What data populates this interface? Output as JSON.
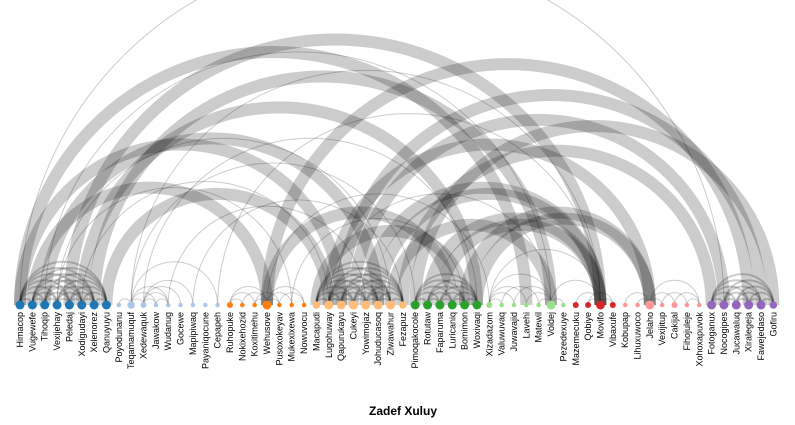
{
  "title": "Zadef Xuluy",
  "colors": {
    "dark_blue": "#1f77b4",
    "light_blue": "#aec7e8",
    "orange": "#ff7f0e",
    "light_orange": "#ffbb78",
    "green": "#2ca02c",
    "light_green": "#98df8a",
    "red": "#d62728",
    "pink": "#ff9896",
    "purple": "#9467bd",
    "light_purple": "#c5b0d5",
    "link": "#000000"
  },
  "nodes": [
    {
      "label": "Himacop",
      "group": 0,
      "size": 4
    },
    {
      "label": "Vugewefe",
      "group": 0,
      "size": 4
    },
    {
      "label": "Tihoqip",
      "group": 0,
      "size": 4
    },
    {
      "label": "Vexijehay",
      "group": 0,
      "size": 4
    },
    {
      "label": "Peledaj",
      "group": 0,
      "size": 4
    },
    {
      "label": "Xodigudayi",
      "group": 0,
      "size": 4
    },
    {
      "label": "Xelenorez",
      "group": 0,
      "size": 4
    },
    {
      "label": "Qanuyuyu",
      "group": 0,
      "size": 4
    },
    {
      "label": "Poyodunanu",
      "group": 1,
      "size": 1
    },
    {
      "label": "Teqamamuquf",
      "group": 1,
      "size": 3
    },
    {
      "label": "Xedewaquk",
      "group": 1,
      "size": 2
    },
    {
      "label": "Jawakow",
      "group": 1,
      "size": 1
    },
    {
      "label": "Wudanug",
      "group": 1,
      "size": 1
    },
    {
      "label": "Gocewe",
      "group": 1,
      "size": 1
    },
    {
      "label": "Mapipiwaq",
      "group": 1,
      "size": 1
    },
    {
      "label": "Payaniqocune",
      "group": 1,
      "size": 1
    },
    {
      "label": "Cepapeh",
      "group": 1,
      "size": 1
    },
    {
      "label": "Ruhopuke",
      "group": 2,
      "size": 2
    },
    {
      "label": "Nokixehozid",
      "group": 2,
      "size": 1
    },
    {
      "label": "Koxitimehu",
      "group": 2,
      "size": 1
    },
    {
      "label": "Wehusove",
      "group": 2,
      "size": 4
    },
    {
      "label": "Pusoxokeyav",
      "group": 2,
      "size": 1
    },
    {
      "label": "Mukexixewa",
      "group": 2,
      "size": 1
    },
    {
      "label": "Nowuvocu",
      "group": 2,
      "size": 1
    },
    {
      "label": "Macapudi",
      "group": 3,
      "size": 3
    },
    {
      "label": "Lugohuway",
      "group": 3,
      "size": 4
    },
    {
      "label": "Qapurukayu",
      "group": 3,
      "size": 4
    },
    {
      "label": "Cukeyi",
      "group": 3,
      "size": 4
    },
    {
      "label": "Yowimojaz",
      "group": 3,
      "size": 4
    },
    {
      "label": "Johuducasoq",
      "group": 3,
      "size": 4
    },
    {
      "label": "Ziwawahur",
      "group": 3,
      "size": 4
    },
    {
      "label": "Fezapuz",
      "group": 3,
      "size": 3
    },
    {
      "label": "Pimoqakocole",
      "group": 4,
      "size": 4
    },
    {
      "label": "Rotutaw",
      "group": 4,
      "size": 4
    },
    {
      "label": "Faparuma",
      "group": 4,
      "size": 4
    },
    {
      "label": "Luricaniq",
      "group": 4,
      "size": 4
    },
    {
      "label": "Bomimon",
      "group": 4,
      "size": 4
    },
    {
      "label": "Woxivaqi",
      "group": 4,
      "size": 4
    },
    {
      "label": "Xizadazom",
      "group": 5,
      "size": 2
    },
    {
      "label": "Valuwuvaq",
      "group": 5,
      "size": 1
    },
    {
      "label": "Juwavajid",
      "group": 5,
      "size": 1
    },
    {
      "label": "Lavehi",
      "group": 5,
      "size": 1
    },
    {
      "label": "Matewil",
      "group": 5,
      "size": 1
    },
    {
      "label": "Voldej",
      "group": 5,
      "size": 4
    },
    {
      "label": "Pezedexuye",
      "group": 5,
      "size": 1
    },
    {
      "label": "Mazemecuku",
      "group": 6,
      "size": 2
    },
    {
      "label": "Qobiye",
      "group": 6,
      "size": 2
    },
    {
      "label": "Movifo",
      "group": 6,
      "size": 4
    },
    {
      "label": "Vibaxufe",
      "group": 6,
      "size": 2
    },
    {
      "label": "Kobupap",
      "group": 7,
      "size": 1
    },
    {
      "label": "Lihuxuwoco",
      "group": 7,
      "size": 1
    },
    {
      "label": "Jelaho",
      "group": 7,
      "size": 4
    },
    {
      "label": "Vexijitup",
      "group": 7,
      "size": 1
    },
    {
      "label": "Cakijal",
      "group": 7,
      "size": 2
    },
    {
      "label": "Fihojuleje",
      "group": 7,
      "size": 1
    },
    {
      "label": "Xohoxapuvok",
      "group": 7,
      "size": 1
    },
    {
      "label": "Fotoganux",
      "group": 8,
      "size": 4
    },
    {
      "label": "Nocogipes",
      "group": 8,
      "size": 4
    },
    {
      "label": "Jucawaluq",
      "group": 8,
      "size": 4
    },
    {
      "label": "Xiralegeja",
      "group": 8,
      "size": 4
    },
    {
      "label": "Fawejedaso",
      "group": 8,
      "size": 4
    },
    {
      "label": "Gofiru",
      "group": 8,
      "size": 3
    }
  ],
  "links": [
    [
      0,
      1,
      2
    ],
    [
      0,
      2,
      2
    ],
    [
      0,
      3,
      2
    ],
    [
      0,
      4,
      2
    ],
    [
      0,
      5,
      2
    ],
    [
      0,
      6,
      2
    ],
    [
      0,
      7,
      2
    ],
    [
      1,
      2,
      2
    ],
    [
      1,
      3,
      2
    ],
    [
      1,
      4,
      2
    ],
    [
      1,
      5,
      2
    ],
    [
      1,
      6,
      2
    ],
    [
      1,
      7,
      2
    ],
    [
      2,
      3,
      2
    ],
    [
      2,
      4,
      2
    ],
    [
      2,
      5,
      2
    ],
    [
      2,
      6,
      2
    ],
    [
      2,
      7,
      2
    ],
    [
      3,
      4,
      2
    ],
    [
      3,
      5,
      2
    ],
    [
      3,
      6,
      2
    ],
    [
      3,
      7,
      2
    ],
    [
      4,
      5,
      2
    ],
    [
      4,
      6,
      2
    ],
    [
      4,
      7,
      2
    ],
    [
      5,
      6,
      2
    ],
    [
      5,
      7,
      2
    ],
    [
      6,
      7,
      2
    ],
    [
      24,
      25,
      2
    ],
    [
      24,
      26,
      2
    ],
    [
      24,
      27,
      2
    ],
    [
      24,
      28,
      2
    ],
    [
      24,
      29,
      2
    ],
    [
      24,
      30,
      2
    ],
    [
      24,
      31,
      2
    ],
    [
      25,
      26,
      2
    ],
    [
      25,
      27,
      2
    ],
    [
      25,
      28,
      2
    ],
    [
      25,
      29,
      2
    ],
    [
      25,
      30,
      2
    ],
    [
      25,
      31,
      2
    ],
    [
      26,
      27,
      2
    ],
    [
      26,
      28,
      2
    ],
    [
      26,
      29,
      2
    ],
    [
      26,
      30,
      2
    ],
    [
      26,
      31,
      2
    ],
    [
      27,
      28,
      2
    ],
    [
      27,
      29,
      2
    ],
    [
      27,
      30,
      2
    ],
    [
      27,
      31,
      2
    ],
    [
      28,
      29,
      2
    ],
    [
      28,
      30,
      2
    ],
    [
      28,
      31,
      2
    ],
    [
      29,
      30,
      2
    ],
    [
      29,
      31,
      2
    ],
    [
      30,
      31,
      2
    ],
    [
      32,
      33,
      2
    ],
    [
      32,
      34,
      2
    ],
    [
      32,
      35,
      2
    ],
    [
      32,
      36,
      2
    ],
    [
      32,
      37,
      2
    ],
    [
      33,
      34,
      2
    ],
    [
      33,
      35,
      2
    ],
    [
      33,
      36,
      2
    ],
    [
      33,
      37,
      2
    ],
    [
      34,
      35,
      2
    ],
    [
      34,
      36,
      2
    ],
    [
      34,
      37,
      2
    ],
    [
      35,
      36,
      2
    ],
    [
      35,
      37,
      2
    ],
    [
      36,
      37,
      2
    ],
    [
      56,
      57,
      2
    ],
    [
      56,
      58,
      2
    ],
    [
      56,
      59,
      2
    ],
    [
      56,
      60,
      2
    ],
    [
      56,
      61,
      2
    ],
    [
      57,
      58,
      2
    ],
    [
      57,
      59,
      2
    ],
    [
      57,
      60,
      2
    ],
    [
      57,
      61,
      2
    ],
    [
      58,
      59,
      2
    ],
    [
      58,
      60,
      2
    ],
    [
      58,
      61,
      2
    ],
    [
      59,
      60,
      2
    ],
    [
      59,
      61,
      2
    ],
    [
      60,
      61,
      2
    ],
    [
      9,
      10,
      1
    ],
    [
      9,
      11,
      1
    ],
    [
      9,
      12,
      1
    ],
    [
      10,
      11,
      1
    ],
    [
      10,
      12,
      1
    ],
    [
      10,
      13,
      1
    ],
    [
      11,
      12,
      1
    ],
    [
      8,
      9,
      1
    ],
    [
      10,
      14,
      1
    ],
    [
      9,
      16,
      1
    ],
    [
      17,
      18,
      1
    ],
    [
      17,
      19,
      1
    ],
    [
      17,
      20,
      1
    ],
    [
      18,
      20,
      1
    ],
    [
      19,
      20,
      1
    ],
    [
      20,
      21,
      1
    ],
    [
      20,
      22,
      1
    ],
    [
      20,
      23,
      1
    ],
    [
      21,
      23,
      1
    ],
    [
      19,
      21,
      1
    ],
    [
      38,
      39,
      1
    ],
    [
      38,
      40,
      1
    ],
    [
      38,
      41,
      1
    ],
    [
      38,
      43,
      1
    ],
    [
      39,
      42,
      1
    ],
    [
      40,
      43,
      1
    ],
    [
      41,
      43,
      1
    ],
    [
      42,
      43,
      1
    ],
    [
      43,
      44,
      1
    ],
    [
      45,
      47,
      1
    ],
    [
      46,
      47,
      1
    ],
    [
      47,
      48,
      1
    ],
    [
      46,
      48,
      1
    ],
    [
      38,
      47,
      1
    ],
    [
      43,
      47,
      1
    ],
    [
      49,
      51,
      1
    ],
    [
      50,
      51,
      1
    ],
    [
      51,
      52,
      1
    ],
    [
      51,
      53,
      1
    ],
    [
      52,
      54,
      1
    ],
    [
      51,
      55,
      1
    ],
    [
      53,
      55,
      1
    ],
    [
      54,
      55,
      1
    ],
    [
      0,
      26,
      12
    ],
    [
      0,
      41,
      12
    ],
    [
      1,
      20,
      12
    ],
    [
      2,
      29,
      12
    ],
    [
      4,
      47,
      12
    ],
    [
      5,
      37,
      12
    ],
    [
      6,
      43,
      12
    ],
    [
      7,
      25,
      12
    ],
    [
      20,
      59,
      12
    ],
    [
      20,
      35,
      12
    ],
    [
      25,
      51,
      12
    ],
    [
      26,
      60,
      12
    ],
    [
      28,
      47,
      12
    ],
    [
      30,
      43,
      12
    ],
    [
      31,
      56,
      12
    ],
    [
      27,
      57,
      12
    ],
    [
      24,
      36,
      12
    ],
    [
      33,
      47,
      12
    ],
    [
      36,
      51,
      12
    ],
    [
      34,
      47,
      12
    ],
    [
      37,
      51,
      12
    ],
    [
      29,
      47,
      12
    ],
    [
      32,
      61,
      12
    ],
    [
      0,
      57,
      1
    ],
    [
      9,
      47,
      1
    ],
    [
      2,
      43,
      1
    ],
    [
      5,
      25,
      1
    ],
    [
      3,
      30,
      1
    ],
    [
      9,
      32,
      1
    ],
    [
      20,
      38,
      1
    ],
    [
      25,
      43,
      1
    ],
    [
      16,
      47,
      1
    ],
    [
      3,
      22,
      1
    ],
    [
      10,
      37,
      1
    ],
    [
      22,
      36,
      1
    ],
    [
      14,
      31,
      1
    ],
    [
      12,
      28,
      1
    ]
  ]
}
